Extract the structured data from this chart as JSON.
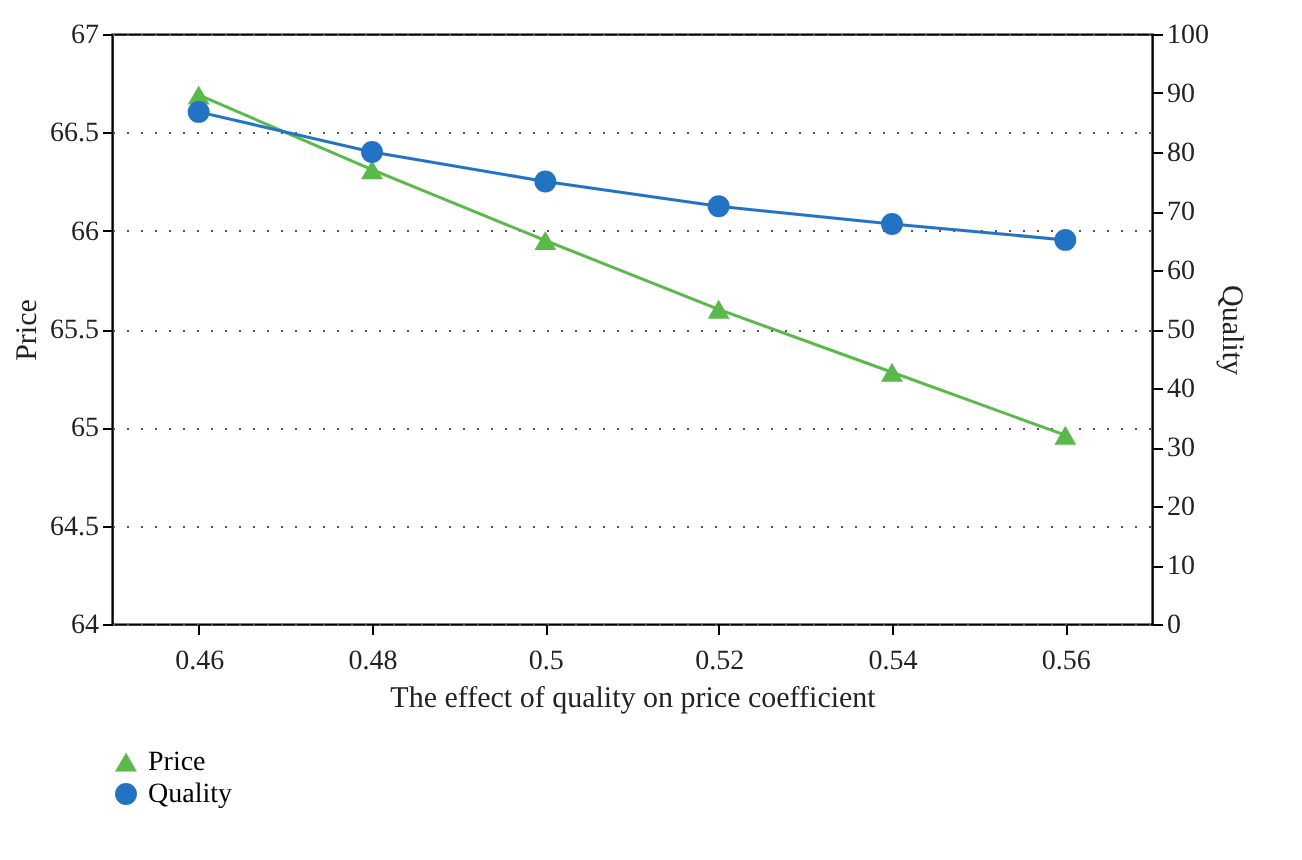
{
  "chart_data": {
    "type": "line",
    "xlabel": "The effect of quality on price coefficient",
    "ylabel": "Price",
    "y2label": "Quality",
    "categories": [
      "0.46",
      "0.48",
      "0.5",
      "0.52",
      "0.54",
      "0.56"
    ],
    "series": [
      {
        "name": "Price",
        "color": "#5bb84a",
        "marker": "triangle",
        "values": [
          66.69,
          66.31,
          65.95,
          65.6,
          65.28,
          64.96
        ]
      },
      {
        "name": "Quality",
        "color": "#2373c4",
        "marker": "circle",
        "axis": "y2",
        "values": [
          86.8,
          80.0,
          75.0,
          70.8,
          67.8,
          65.1
        ]
      }
    ],
    "ylim": [
      64,
      67
    ],
    "yticks": [
      64,
      64.5,
      65,
      65.5,
      66,
      66.5,
      67
    ],
    "y2lim": [
      0,
      100
    ],
    "y2ticks": [
      0,
      10,
      20,
      30,
      40,
      50,
      60,
      70,
      80,
      90,
      100
    ],
    "grid": "y",
    "legend": "bottom",
    "line_style": "solid"
  }
}
